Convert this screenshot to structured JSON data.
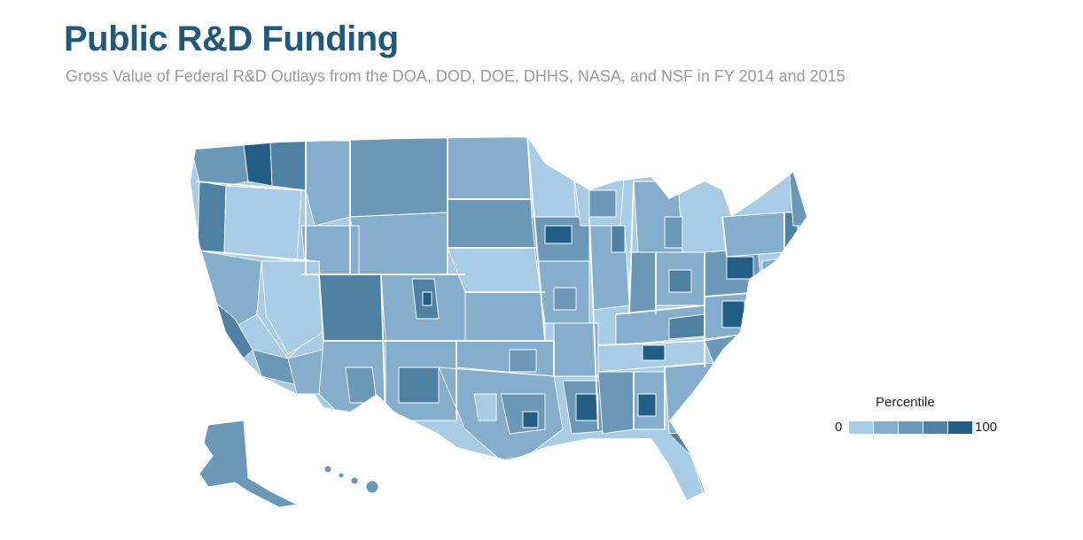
{
  "header": {
    "title": "Public R&D Funding",
    "subtitle": "Gross Value of Federal R&D Outlays from the DOA, DOD, DOE, DHHS, NASA, and NSF in FY 2014 and 2015"
  },
  "legend": {
    "title": "Percentile",
    "min_label": "0",
    "max_label": "100",
    "colors": [
      "#a9cce6",
      "#84aecb",
      "#6a98b6",
      "#4f81a2",
      "#225d86"
    ]
  },
  "map": {
    "kind": "choropleth",
    "unit": "congressional district",
    "palette_names": [
      "quintile-1",
      "quintile-2",
      "quintile-3",
      "quintile-4",
      "quintile-5"
    ],
    "border_color": "#ffffff"
  }
}
